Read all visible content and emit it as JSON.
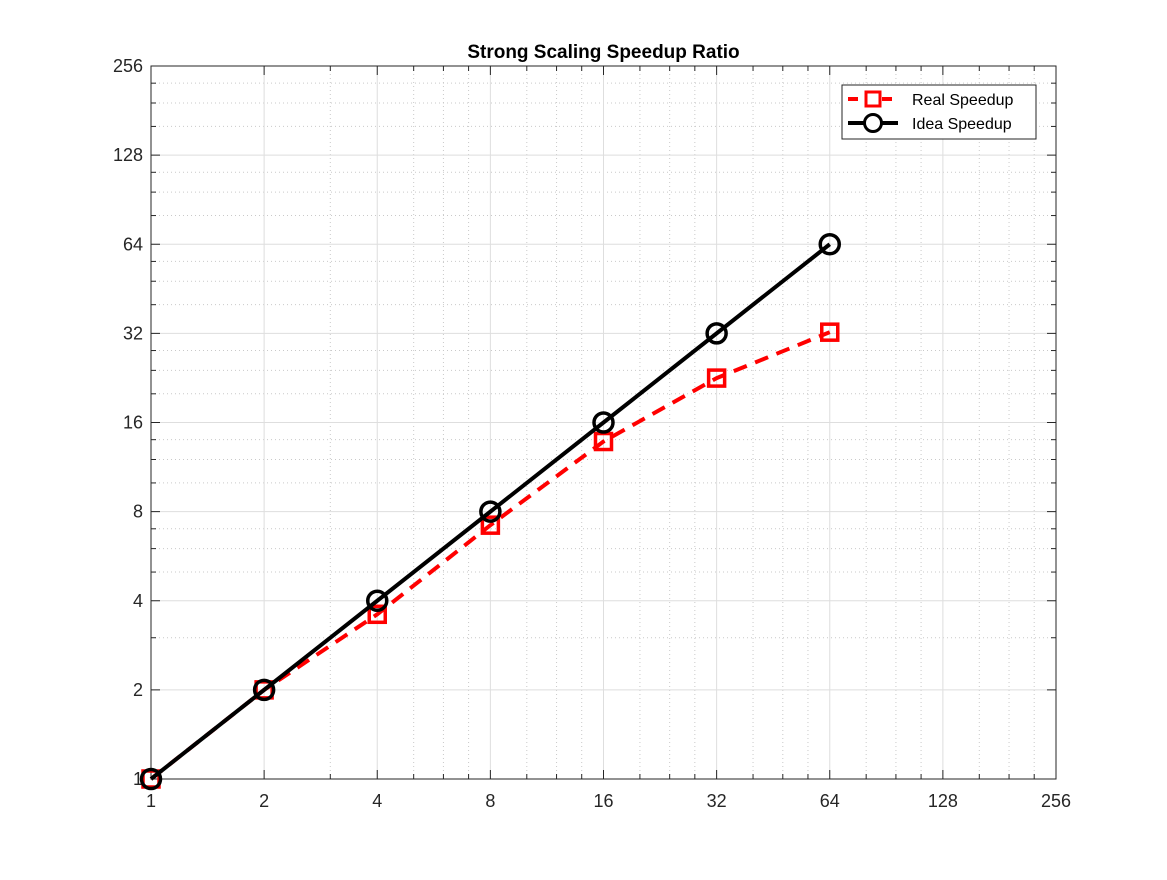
{
  "chart_data": {
    "type": "line",
    "title": "Strong Scaling Speedup Ratio",
    "xlabel": "",
    "ylabel": "",
    "xscale": "log2",
    "yscale": "log2",
    "xlim": [
      1,
      256
    ],
    "ylim": [
      1,
      256
    ],
    "xticks": [
      "1",
      "2",
      "4",
      "8",
      "16",
      "32",
      "64",
      "128",
      "256"
    ],
    "yticks": [
      "1",
      "2",
      "4",
      "8",
      "16",
      "32",
      "64",
      "128",
      "256"
    ],
    "grid": true,
    "minor_grid": true,
    "legend_position": "top-right",
    "x": [
      1,
      2,
      4,
      8,
      16,
      32,
      64
    ],
    "series": [
      {
        "name": "Real Speedup",
        "values": [
          1,
          2,
          3.6,
          7.2,
          13.8,
          22.6,
          32.3
        ],
        "color": "#ff0000",
        "line_style": "dashed",
        "marker": "square"
      },
      {
        "name": "Idea Speedup",
        "values": [
          1,
          2,
          4,
          8,
          16,
          32,
          64
        ],
        "color": "#000000",
        "line_style": "solid",
        "marker": "circle"
      }
    ]
  }
}
